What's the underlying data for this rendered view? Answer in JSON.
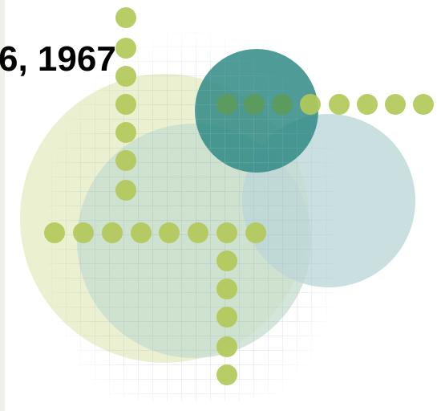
{
  "title": "6, 1967"
}
